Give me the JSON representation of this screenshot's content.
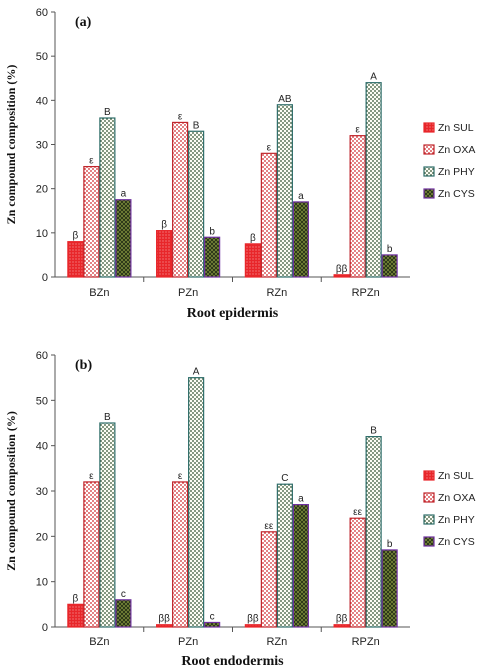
{
  "chart_data": [
    {
      "type": "bar",
      "panel_label": "(a)",
      "categories": [
        "BZn",
        "PZn",
        "RZn",
        "RPZn"
      ],
      "ylim": [
        0,
        60
      ],
      "yticks": [
        0,
        10,
        20,
        30,
        40,
        50,
        60
      ],
      "ylabel": "Zn compound composition (%)",
      "xlabel": "Root epidermis",
      "legend_position": "right",
      "series": [
        {
          "name": "Zn  SUL",
          "color": "#e8262a",
          "values": [
            8,
            10.5,
            7.5,
            0.5
          ],
          "labels": [
            "β",
            "β",
            "β",
            "ββ"
          ]
        },
        {
          "name": "Zn OXA",
          "color": "#c0252b",
          "values": [
            25,
            35,
            28,
            32
          ],
          "labels": [
            "ε",
            "ε",
            "ε",
            "ε"
          ]
        },
        {
          "name": "Zn PHY",
          "color": "#2f6e6a",
          "values": [
            36,
            33,
            39,
            44
          ],
          "labels": [
            "B",
            "B",
            "AB",
            "A"
          ]
        },
        {
          "name": "Zn CYS",
          "color": "#7030a0",
          "values": [
            17.5,
            9,
            17,
            5
          ],
          "labels": [
            "a",
            "b",
            "a",
            "b"
          ]
        }
      ]
    },
    {
      "type": "bar",
      "panel_label": "(b)",
      "categories": [
        "BZn",
        "PZn",
        "RZn",
        "RPZn"
      ],
      "ylim": [
        0,
        60
      ],
      "yticks": [
        0,
        10,
        20,
        30,
        40,
        50,
        60
      ],
      "ylabel": "Zn compound composition (%)",
      "xlabel": "Root endodermis",
      "legend_position": "right",
      "series": [
        {
          "name": "Zn  SUL",
          "color": "#e8262a",
          "values": [
            5,
            0.5,
            0.5,
            0.5
          ],
          "labels": [
            "β",
            "ββ",
            "ββ",
            "ββ"
          ]
        },
        {
          "name": "Zn OXA",
          "color": "#c0252b",
          "values": [
            32,
            32,
            21,
            24
          ],
          "labels": [
            "ε",
            "ε",
            "εε",
            "εε"
          ]
        },
        {
          "name": "Zn PHY",
          "color": "#2f6e6a",
          "values": [
            45,
            55,
            31.5,
            42
          ],
          "labels": [
            "B",
            "A",
            "C",
            "B"
          ]
        },
        {
          "name": "Zn CYS",
          "color": "#7030a0",
          "values": [
            6,
            1,
            27,
            17
          ],
          "labels": [
            "c",
            "c",
            "a",
            "b"
          ]
        }
      ]
    }
  ]
}
